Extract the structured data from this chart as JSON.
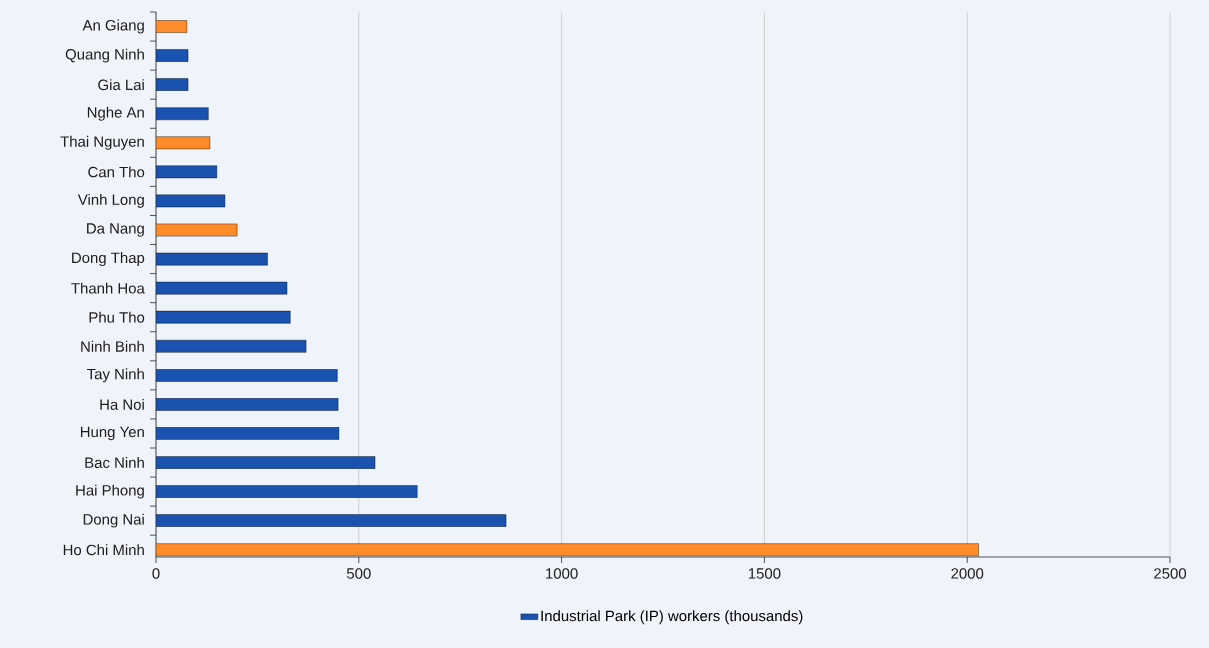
{
  "chart_data": {
    "type": "bar",
    "orientation": "horizontal",
    "categories": [
      "An Giang",
      "Quang Ninh",
      "Gia Lai",
      "Nghe An",
      "Thai Nguyen",
      "Can Tho",
      "Vinh Long",
      "Da Nang",
      "Dong Thap",
      "Thanh Hoa",
      "Phu Tho",
      "Ninh Binh",
      "Tay Ninh",
      "Ha Noi",
      "Hung Yen",
      "Bac Ninh",
      "Hai Phong",
      "Dong Nai",
      "Ho Chi Minh"
    ],
    "series": [
      {
        "name": "Industrial Park (IP) workers (thousands)",
        "color": "#1a52b0",
        "colors": [
          "#ff8c2a",
          "#1a52b0",
          "#1a52b0",
          "#1a52b0",
          "#ff8c2a",
          "#1a52b0",
          "#1a52b0",
          "#ff8c2a",
          "#1a52b0",
          "#1a52b0",
          "#1a52b0",
          "#1a52b0",
          "#1a52b0",
          "#1a52b0",
          "#1a52b0",
          "#1a52b0",
          "#1a52b0",
          "#1a52b0",
          "#ff8c2a"
        ],
        "values": [
          76,
          79,
          79,
          129,
          133,
          150,
          170,
          200,
          275,
          323,
          331,
          370,
          447,
          449,
          451,
          540,
          644,
          863,
          2028
        ]
      }
    ],
    "xlim": [
      0,
      2500
    ],
    "xticks": [
      0,
      500,
      1000,
      1500,
      2000,
      2500
    ],
    "grid": "x",
    "legend": "bottom"
  }
}
